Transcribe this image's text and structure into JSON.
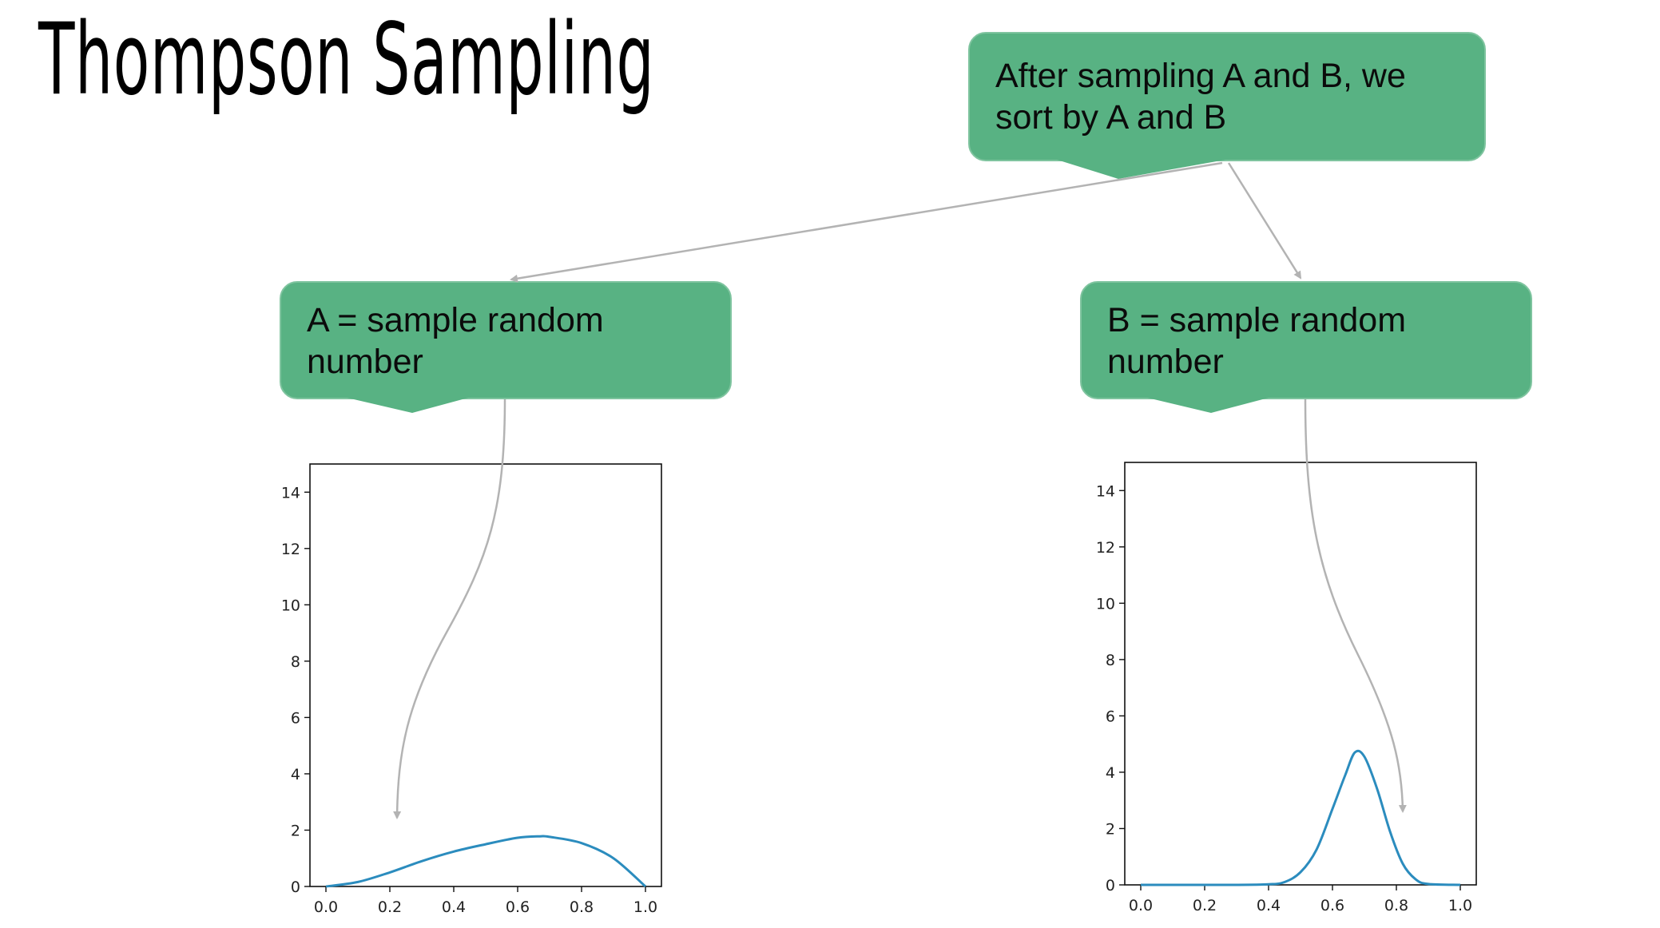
{
  "title": "Thompson Sampling",
  "callouts": {
    "top": "After sampling A and B, we sort by A and B",
    "left": "A = sample random number",
    "right": "B = sample random number"
  },
  "colors": {
    "callout_fill": "#58b283",
    "curve": "#2b8cbe",
    "arrow": "#b3b3b3"
  },
  "chart_data": [
    {
      "type": "line",
      "title": "",
      "xlabel": "",
      "ylabel": "",
      "xlim": [
        0.0,
        1.0
      ],
      "ylim": [
        0,
        15
      ],
      "xticks": [
        0.0,
        0.2,
        0.4,
        0.6,
        0.8,
        1.0
      ],
      "yticks": [
        0,
        2,
        4,
        6,
        8,
        10,
        12,
        14
      ],
      "xtick_labels": [
        "0.0",
        "0.2",
        "0.4",
        "0.6",
        "0.8",
        "1.0"
      ],
      "ytick_labels": [
        "0",
        "2",
        "4",
        "6",
        "8",
        "10",
        "12",
        "14"
      ],
      "series": [
        {
          "x": [
            0.0,
            0.1,
            0.2,
            0.3,
            0.4,
            0.5,
            0.6,
            0.67,
            0.7,
            0.8,
            0.9,
            1.0
          ],
          "y": [
            0.0,
            0.16,
            0.5,
            0.9,
            1.24,
            1.5,
            1.73,
            1.78,
            1.76,
            1.54,
            1.0,
            0.0
          ]
        }
      ]
    },
    {
      "type": "line",
      "title": "",
      "xlabel": "",
      "ylabel": "",
      "xlim": [
        0.0,
        1.0
      ],
      "ylim": [
        0,
        15
      ],
      "xticks": [
        0.0,
        0.2,
        0.4,
        0.6,
        0.8,
        1.0
      ],
      "yticks": [
        0,
        2,
        4,
        6,
        8,
        10,
        12,
        14
      ],
      "xtick_labels": [
        "0.0",
        "0.2",
        "0.4",
        "0.6",
        "0.8",
        "1.0"
      ],
      "ytick_labels": [
        "0",
        "2",
        "4",
        "6",
        "8",
        "10",
        "12",
        "14"
      ],
      "series": [
        {
          "x": [
            0.0,
            0.3,
            0.4,
            0.45,
            0.5,
            0.55,
            0.6,
            0.64,
            0.67,
            0.7,
            0.74,
            0.78,
            0.82,
            0.86,
            0.9,
            1.0
          ],
          "y": [
            0.0,
            0.0,
            0.02,
            0.1,
            0.45,
            1.25,
            2.7,
            3.9,
            4.7,
            4.55,
            3.4,
            1.9,
            0.75,
            0.2,
            0.03,
            0.0
          ]
        }
      ]
    }
  ]
}
